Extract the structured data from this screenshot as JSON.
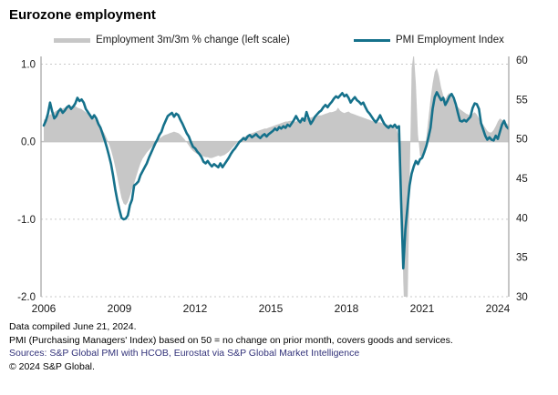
{
  "title": "Eurozone employment",
  "legend": {
    "employment_label": "Employment 3m/3m % change (left scale)",
    "pmi_label": "PMI Employment Index"
  },
  "footer": {
    "line1": "Data compiled June 21, 2024.",
    "line2": "PMI (Purchasing Managers' Index) based on 50 = no change on prior month, covers goods and services.",
    "line3": "Sources: S&P Global PMI with HCOB, Eurostat via S&P Global Market Intelligence",
    "line4": "© 2024 S&P Global."
  },
  "colors": {
    "bar": "#c7c7c7",
    "line": "#15718b",
    "grid": "#c9c9c9",
    "zero_line": "#c2c2c2",
    "axis_line": "#a8a8a8",
    "tick_text": "#1a1a1a"
  },
  "chart_data": {
    "type": "area+line",
    "title": "Eurozone employment",
    "x_start_year": 2006,
    "x_months_per_point": 1,
    "x_ticks": [
      2006,
      2009,
      2012,
      2015,
      2018,
      2021,
      2024
    ],
    "left_axis": {
      "label": "Employment 3m/3m % change",
      "tick_values": [
        1.0,
        0.0,
        -1.0,
        -2.0
      ],
      "tick_labels": [
        "1.0",
        "0.0",
        "-1.0",
        "-2.0"
      ],
      "range": [
        -2.0,
        1.1
      ],
      "grid_at": [
        1.0,
        -1.0,
        -2.0
      ]
    },
    "right_axis": {
      "label": "PMI Employment Index",
      "tick_values": [
        60,
        55,
        50,
        45,
        40,
        35,
        30
      ],
      "tick_labels": [
        "60",
        "55",
        "50",
        "45",
        "40",
        "35",
        "30"
      ],
      "range": [
        30,
        60.45
      ]
    },
    "series": [
      {
        "name": "Employment 3m/3m % change (left scale)",
        "type": "area",
        "axis": "left",
        "color": "#c7c7c7",
        "values": [
          0.28,
          0.3,
          0.33,
          0.35,
          0.36,
          0.38,
          0.4,
          0.41,
          0.42,
          0.43,
          0.44,
          0.44,
          0.45,
          0.46,
          0.47,
          0.46,
          0.44,
          0.43,
          0.42,
          0.4,
          0.38,
          0.36,
          0.34,
          0.32,
          0.3,
          0.27,
          0.24,
          0.2,
          0.15,
          0.1,
          0.04,
          -0.03,
          -0.11,
          -0.21,
          -0.33,
          -0.46,
          -0.6,
          -0.73,
          -0.8,
          -0.82,
          -0.78,
          -0.7,
          -0.61,
          -0.54,
          -0.45,
          -0.36,
          -0.28,
          -0.22,
          -0.18,
          -0.14,
          -0.11,
          -0.08,
          -0.05,
          -0.02,
          0.01,
          0.04,
          0.06,
          0.08,
          0.09,
          0.1,
          0.11,
          0.12,
          0.13,
          0.12,
          0.11,
          0.09,
          0.06,
          0.03,
          -0.01,
          -0.05,
          -0.09,
          -0.12,
          -0.14,
          -0.16,
          -0.17,
          -0.18,
          -0.19,
          -0.2,
          -0.2,
          -0.21,
          -0.21,
          -0.2,
          -0.19,
          -0.18,
          -0.19,
          -0.18,
          -0.17,
          -0.15,
          -0.13,
          -0.1,
          -0.07,
          -0.04,
          -0.01,
          0.02,
          0.04,
          0.06,
          0.07,
          0.09,
          0.1,
          0.11,
          0.12,
          0.13,
          0.14,
          0.15,
          0.16,
          0.17,
          0.17,
          0.18,
          0.19,
          0.2,
          0.21,
          0.22,
          0.23,
          0.24,
          0.25,
          0.26,
          0.26,
          0.27,
          0.27,
          0.26,
          0.26,
          0.27,
          0.28,
          0.29,
          0.3,
          0.3,
          0.31,
          0.31,
          0.32,
          0.32,
          0.33,
          0.34,
          0.34,
          0.35,
          0.36,
          0.37,
          0.38,
          0.38,
          0.39,
          0.4,
          0.44,
          0.4,
          0.38,
          0.37,
          0.38,
          0.39,
          0.37,
          0.36,
          0.35,
          0.34,
          0.33,
          0.32,
          0.31,
          0.3,
          0.29,
          0.28,
          0.27,
          0.26,
          0.26,
          0.25,
          0.25,
          0.24,
          0.23,
          0.22,
          0.22,
          0.21,
          0.2,
          0.18,
          0.15,
          0.05,
          -0.4,
          -1.8,
          -2.6,
          -2.2,
          -0.6,
          0.95,
          1.15,
          0.75,
          0.1,
          -0.18,
          -0.22,
          -0.15,
          0.05,
          0.3,
          0.55,
          0.75,
          0.9,
          0.95,
          0.85,
          0.7,
          0.6,
          0.55,
          0.6,
          0.63,
          0.58,
          0.52,
          0.48,
          0.45,
          0.42,
          0.4,
          0.38,
          0.36,
          0.35,
          0.34,
          0.36,
          0.38,
          0.35,
          0.3,
          0.26,
          0.22,
          0.18,
          0.14,
          0.12,
          0.12,
          0.15,
          0.2,
          0.26,
          0.3,
          0.28,
          0.26,
          0.24,
          0.22
        ]
      },
      {
        "name": "PMI Employment Index",
        "type": "line",
        "axis": "right",
        "color": "#15718b",
        "values": [
          51.7,
          52.3,
          53.2,
          54.6,
          53.5,
          52.6,
          52.9,
          53.5,
          53.8,
          53.3,
          53.6,
          54.0,
          54.2,
          53.8,
          54.1,
          54.5,
          55.2,
          54.8,
          55.0,
          54.6,
          53.8,
          53.4,
          53.0,
          52.6,
          53.0,
          52.6,
          51.9,
          51.4,
          50.6,
          49.8,
          48.9,
          47.9,
          46.8,
          45.3,
          43.6,
          42.2,
          41.0,
          40.0,
          39.8,
          39.9,
          40.3,
          41.6,
          42.3,
          44.1,
          44.3,
          44.6,
          45.4,
          45.9,
          46.4,
          46.9,
          47.6,
          48.2,
          48.8,
          49.4,
          49.9,
          50.5,
          50.9,
          51.7,
          52.3,
          52.9,
          53.1,
          53.3,
          52.8,
          53.2,
          53.0,
          52.4,
          51.9,
          51.3,
          50.7,
          50.3,
          49.6,
          49.0,
          48.8,
          48.4,
          48.1,
          47.7,
          47.1,
          46.9,
          47.2,
          46.8,
          46.5,
          46.8,
          46.6,
          46.4,
          46.9,
          46.4,
          46.8,
          47.2,
          47.6,
          48.1,
          48.5,
          48.8,
          49.2,
          49.6,
          49.8,
          50.1,
          49.9,
          50.3,
          50.5,
          50.2,
          50.4,
          50.6,
          50.3,
          50.1,
          50.4,
          50.6,
          50.3,
          50.6,
          50.8,
          51.0,
          51.3,
          51.1,
          51.5,
          51.3,
          51.6,
          51.4,
          51.8,
          51.6,
          52.0,
          52.4,
          52.9,
          52.4,
          52.1,
          52.6,
          52.3,
          53.4,
          52.6,
          51.9,
          52.3,
          52.8,
          53.1,
          53.4,
          53.6,
          54.0,
          54.3,
          54.0,
          54.4,
          54.7,
          55.1,
          55.4,
          55.2,
          55.5,
          55.8,
          55.4,
          55.6,
          55.2,
          54.6,
          55.0,
          55.3,
          54.9,
          54.7,
          54.4,
          54.6,
          54.0,
          53.5,
          53.2,
          52.8,
          52.4,
          52.1,
          52.5,
          53.0,
          52.4,
          51.9,
          51.6,
          51.4,
          51.7,
          51.5,
          51.8,
          51.4,
          51.6,
          42.2,
          33.6,
          38.5,
          41.3,
          44.1,
          45.6,
          46.5,
          47.2,
          46.8,
          47.4,
          47.6,
          48.3,
          49.1,
          50.2,
          51.4,
          53.8,
          55.3,
          55.9,
          55.4,
          54.9,
          55.2,
          54.3,
          54.8,
          55.4,
          55.7,
          55.2,
          54.4,
          53.3,
          52.3,
          52.2,
          52.4,
          52.2,
          52.5,
          52.8,
          53.9,
          54.5,
          54.4,
          53.8,
          52.0,
          51.2,
          50.4,
          49.9,
          50.2,
          49.9,
          49.8,
          50.4,
          50.0,
          50.9,
          51.8,
          52.3,
          51.6,
          51.3
        ]
      }
    ]
  }
}
